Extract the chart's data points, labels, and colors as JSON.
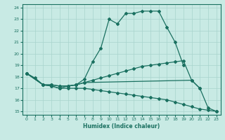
{
  "xlabel": "Humidex (Indice chaleur)",
  "xlim": [
    -0.5,
    23.5
  ],
  "ylim": [
    14.7,
    24.3
  ],
  "xticks": [
    0,
    1,
    2,
    3,
    4,
    5,
    6,
    7,
    8,
    9,
    10,
    11,
    12,
    13,
    14,
    15,
    16,
    17,
    18,
    19,
    20,
    21,
    22,
    23
  ],
  "yticks": [
    15,
    16,
    17,
    18,
    19,
    20,
    21,
    22,
    23,
    24
  ],
  "bg_color": "#c8eae4",
  "grid_color": "#a8d4cc",
  "line_color": "#1a7060",
  "lines": [
    {
      "x": [
        0,
        1,
        2,
        3,
        4,
        5,
        6,
        7,
        8,
        9,
        10,
        11,
        12,
        13,
        14,
        15,
        16,
        17,
        18,
        19
      ],
      "y": [
        18.3,
        17.9,
        17.3,
        17.2,
        17.0,
        17.2,
        17.3,
        17.8,
        19.3,
        20.5,
        23.0,
        22.6,
        23.5,
        23.5,
        23.7,
        23.7,
        23.7,
        22.3,
        21.0,
        19.0
      ]
    },
    {
      "x": [
        0,
        2,
        3,
        4,
        5,
        6,
        7,
        20,
        21,
        22,
        23
      ],
      "y": [
        18.3,
        17.3,
        17.3,
        17.2,
        17.2,
        17.3,
        17.5,
        17.7,
        17.0,
        15.3,
        15.0
      ]
    },
    {
      "x": [
        0,
        2,
        3,
        4,
        5,
        6,
        7,
        8,
        9,
        10,
        11,
        12,
        13,
        14,
        15,
        16,
        17,
        18,
        19,
        20,
        21
      ],
      "y": [
        18.3,
        17.3,
        17.3,
        17.2,
        17.2,
        17.3,
        17.5,
        17.7,
        17.9,
        18.1,
        18.3,
        18.5,
        18.7,
        18.9,
        19.0,
        19.1,
        19.2,
        19.3,
        19.4,
        17.7,
        17.0
      ]
    },
    {
      "x": [
        0,
        2,
        3,
        4,
        5,
        6,
        7,
        8,
        9,
        10,
        11,
        12,
        13,
        14,
        15,
        16,
        17,
        18,
        19,
        20,
        21,
        22,
        23
      ],
      "y": [
        18.3,
        17.3,
        17.2,
        17.0,
        17.0,
        17.0,
        17.0,
        16.9,
        16.8,
        16.7,
        16.6,
        16.5,
        16.4,
        16.3,
        16.2,
        16.1,
        16.0,
        15.8,
        15.6,
        15.4,
        15.2,
        15.1,
        15.0
      ]
    }
  ]
}
